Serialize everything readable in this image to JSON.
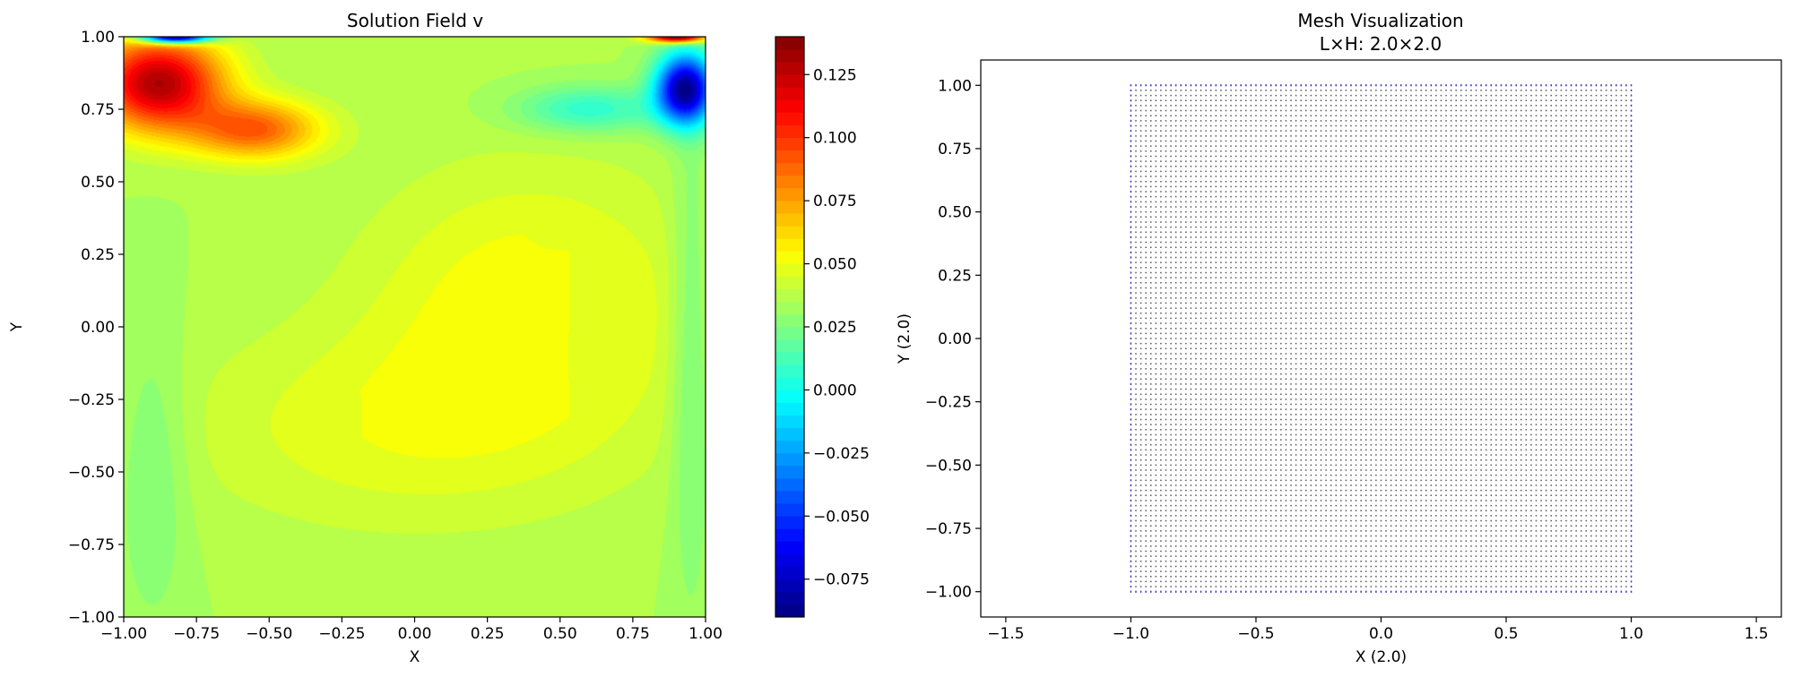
{
  "figure": {
    "background": "#ffffff"
  },
  "chart_data": [
    {
      "type": "heatmap",
      "title": "Solution Field v",
      "xlabel": "X",
      "ylabel": "Y",
      "xlim": [
        -1.0,
        1.0
      ],
      "ylim": [
        -1.0,
        1.0
      ],
      "x_ticks": [
        -1.0,
        -0.75,
        -0.5,
        -0.25,
        0.0,
        0.25,
        0.5,
        0.75,
        1.0
      ],
      "x_tick_labels": [
        "−1.00",
        "−0.75",
        "−0.50",
        "−0.25",
        "0.00",
        "0.25",
        "0.50",
        "0.75",
        "1.00"
      ],
      "y_ticks": [
        -1.0,
        -0.75,
        -0.5,
        -0.25,
        0.0,
        0.25,
        0.5,
        0.75,
        1.0
      ],
      "y_tick_labels": [
        "−1.00",
        "−0.75",
        "−0.50",
        "−0.25",
        "0.00",
        "0.25",
        "0.50",
        "0.75",
        "1.00"
      ],
      "colormap": "jet",
      "colorbar": {
        "vmin": -0.09,
        "vmax": 0.14,
        "levels": 46,
        "ticks": [
          -0.075,
          -0.05,
          -0.025,
          0.0,
          0.025,
          0.05,
          0.075,
          0.1,
          0.125
        ],
        "tick_labels": [
          "−0.075",
          "−0.050",
          "−0.025",
          "0.000",
          "0.025",
          "0.050",
          "0.075",
          "0.100",
          "0.125"
        ]
      },
      "field_features": {
        "background_value": 0.035,
        "interior_plateau": {
          "value": 0.05,
          "center": [
            0.4,
            0.1
          ]
        },
        "max_lobe": {
          "value": 0.13,
          "center": [
            -0.88,
            0.84
          ]
        },
        "min_lobe": {
          "value": -0.085,
          "center": [
            0.93,
            0.82
          ]
        },
        "top_left_wall_min": -0.08,
        "top_right_wall_max": 0.14,
        "grid": false
      }
    },
    {
      "type": "scatter",
      "title": "Mesh Visualization",
      "subtitle": "L×H: 2.0×2.0",
      "xlabel": "X (2.0)",
      "ylabel": "Y (2.0)",
      "xlim": [
        -1.6,
        1.6
      ],
      "ylim": [
        -1.1,
        1.1
      ],
      "x_ticks": [
        -1.5,
        -1.0,
        -0.5,
        0.0,
        0.5,
        1.0,
        1.5
      ],
      "x_tick_labels": [
        "−1.5",
        "−1.0",
        "−0.5",
        "0.0",
        "0.5",
        "1.0",
        "1.5"
      ],
      "y_ticks": [
        -1.0,
        -0.75,
        -0.5,
        -0.25,
        0.0,
        0.25,
        0.5,
        0.75,
        1.0
      ],
      "y_tick_labels": [
        "−1.00",
        "−0.75",
        "−0.50",
        "−0.25",
        "0.00",
        "0.25",
        "0.50",
        "0.75",
        "1.00"
      ],
      "grid": false,
      "series": [
        {
          "role": "interior nodes",
          "color": "#555555",
          "grid_points_per_side": 101,
          "x_range": [
            -1.0,
            1.0
          ],
          "y_range": [
            -1.0,
            1.0
          ]
        },
        {
          "role": "boundary nodes",
          "color": "#3b3bbf",
          "grid_points_per_side": 101,
          "x_range": [
            -1.0,
            1.0
          ],
          "y_range": [
            -1.0,
            1.0
          ]
        }
      ]
    }
  ]
}
